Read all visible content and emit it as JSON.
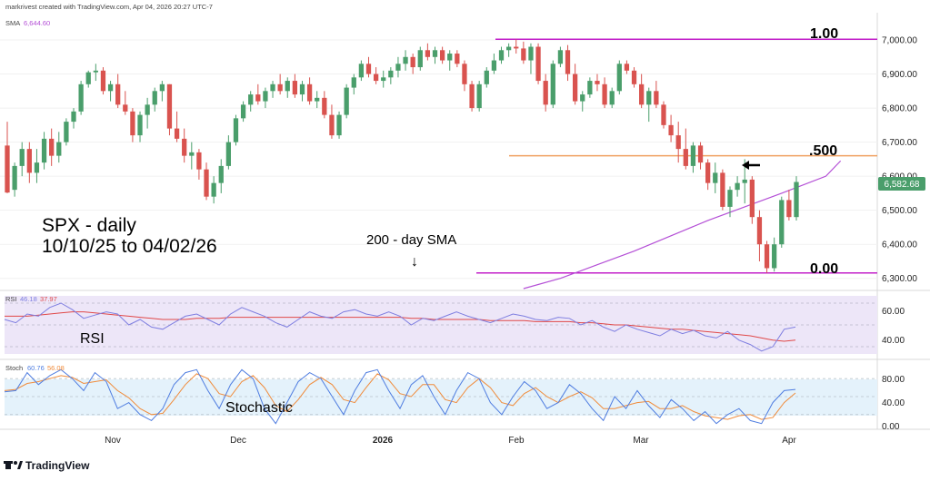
{
  "header": {
    "credit": "markrivest created with TradingView.com, Apr 04, 2026 20:27 UTC-7",
    "sma_label": "SMA",
    "sma_value": "6,644.60",
    "current_price": "6,582.68"
  },
  "annotations": {
    "title_line1": "SPX - daily",
    "title_line2": "10/10/25 to 04/02/26",
    "sma_note": "200 - day SMA",
    "sma_arrow": "↓",
    "fib_top": "1.00",
    "fib_mid": ".500",
    "fib_bottom": "0.00",
    "left_arrow": "🡐"
  },
  "rsi_panel": {
    "label": "RSI",
    "legend_name": "RSI",
    "legend_v1": "46.18",
    "legend_v2": "37.97",
    "ticks": [
      "60.00",
      "40.00"
    ]
  },
  "stoch_panel": {
    "label": "Stochastic",
    "legend_name": "Stoch",
    "legend_v1": "60.76",
    "legend_v2": "56.08",
    "ticks": [
      "80.00",
      "40.00",
      "0.00"
    ]
  },
  "footer": {
    "brand": "TradingView"
  },
  "colors": {
    "up": "#4a9e6b",
    "down": "#d9534f",
    "sma": "#b44fd6",
    "fib_purple": "#c21fc9",
    "fib_orange": "#f0a060",
    "rsi": "#7e7ee0",
    "rsi_ma": "#e04848",
    "stoch_k": "#4f7de0",
    "stoch_d": "#f08c3c",
    "band": "#ede6f8",
    "stoch_band": "#e4f2fb"
  },
  "chart_data": {
    "type": "candlestick",
    "title": "SPX - daily",
    "subtitle": "10/10/25 to 04/02/26",
    "x_tick_labels": [
      "Nov",
      "Dec",
      "2026",
      "Feb",
      "Mar",
      "Apr"
    ],
    "y_ticks": [
      "7,000.00",
      "6,900.00",
      "6,800.00",
      "6,700.00",
      "6,600.00",
      "6,500.00",
      "6,400.00",
      "6,300.00"
    ],
    "ylim": [
      6270,
      7080
    ],
    "fib_levels": [
      {
        "label": "1.00",
        "value": 7002
      },
      {
        "label": ".500",
        "value": 6660
      },
      {
        "label": "0.00",
        "value": 6316
      }
    ],
    "ohlc": [
      [
        6690,
        6760,
        6550,
        6552
      ],
      [
        6560,
        6640,
        6540,
        6630
      ],
      [
        6630,
        6700,
        6600,
        6680
      ],
      [
        6680,
        6700,
        6580,
        6610
      ],
      [
        6610,
        6680,
        6580,
        6640
      ],
      [
        6640,
        6730,
        6620,
        6710
      ],
      [
        6710,
        6740,
        6630,
        6660
      ],
      [
        6660,
        6730,
        6640,
        6700
      ],
      [
        6700,
        6770,
        6690,
        6760
      ],
      [
        6760,
        6800,
        6740,
        6790
      ],
      [
        6790,
        6880,
        6780,
        6870
      ],
      [
        6870,
        6910,
        6860,
        6905
      ],
      [
        6905,
        6930,
        6880,
        6910
      ],
      [
        6910,
        6920,
        6840,
        6850
      ],
      [
        6850,
        6880,
        6820,
        6870
      ],
      [
        6870,
        6900,
        6800,
        6810
      ],
      [
        6810,
        6850,
        6780,
        6790
      ],
      [
        6790,
        6800,
        6700,
        6720
      ],
      [
        6720,
        6790,
        6700,
        6780
      ],
      [
        6780,
        6830,
        6740,
        6810
      ],
      [
        6810,
        6860,
        6790,
        6850
      ],
      [
        6850,
        6880,
        6820,
        6870
      ],
      [
        6870,
        6870,
        6720,
        6740
      ],
      [
        6740,
        6790,
        6700,
        6710
      ],
      [
        6710,
        6740,
        6640,
        6660
      ],
      [
        6660,
        6700,
        6620,
        6670
      ],
      [
        6670,
        6680,
        6590,
        6620
      ],
      [
        6620,
        6640,
        6530,
        6540
      ],
      [
        6540,
        6600,
        6520,
        6580
      ],
      [
        6580,
        6650,
        6550,
        6630
      ],
      [
        6630,
        6720,
        6620,
        6700
      ],
      [
        6700,
        6780,
        6690,
        6770
      ],
      [
        6770,
        6820,
        6760,
        6810
      ],
      [
        6810,
        6850,
        6790,
        6840
      ],
      [
        6840,
        6870,
        6810,
        6820
      ],
      [
        6820,
        6860,
        6800,
        6850
      ],
      [
        6850,
        6880,
        6830,
        6870
      ],
      [
        6870,
        6900,
        6840,
        6850
      ],
      [
        6850,
        6890,
        6830,
        6880
      ],
      [
        6880,
        6900,
        6830,
        6840
      ],
      [
        6840,
        6880,
        6820,
        6870
      ],
      [
        6870,
        6890,
        6810,
        6820
      ],
      [
        6820,
        6850,
        6800,
        6830
      ],
      [
        6830,
        6850,
        6770,
        6780
      ],
      [
        6780,
        6810,
        6710,
        6720
      ],
      [
        6720,
        6790,
        6710,
        6780
      ],
      [
        6780,
        6870,
        6770,
        6860
      ],
      [
        6860,
        6900,
        6840,
        6890
      ],
      [
        6890,
        6940,
        6880,
        6930
      ],
      [
        6930,
        6950,
        6890,
        6900
      ],
      [
        6900,
        6920,
        6870,
        6880
      ],
      [
        6880,
        6910,
        6860,
        6890
      ],
      [
        6890,
        6920,
        6870,
        6910
      ],
      [
        6910,
        6950,
        6890,
        6930
      ],
      [
        6930,
        6970,
        6910,
        6950
      ],
      [
        6950,
        6960,
        6900,
        6920
      ],
      [
        6920,
        6980,
        6910,
        6970
      ],
      [
        6970,
        6990,
        6940,
        6950
      ],
      [
        6950,
        6980,
        6930,
        6970
      ],
      [
        6970,
        6980,
        6930,
        6940
      ],
      [
        6940,
        6970,
        6910,
        6960
      ],
      [
        6960,
        6970,
        6920,
        6930
      ],
      [
        6930,
        6940,
        6850,
        6870
      ],
      [
        6870,
        6880,
        6790,
        6800
      ],
      [
        6800,
        6880,
        6790,
        6870
      ],
      [
        6870,
        6920,
        6860,
        6910
      ],
      [
        6910,
        6960,
        6900,
        6940
      ],
      [
        6940,
        6980,
        6930,
        6970
      ],
      [
        6970,
        6990,
        6950,
        6980
      ],
      [
        6980,
        7002,
        6960,
        6975
      ],
      [
        6975,
        6995,
        6930,
        6940
      ],
      [
        6940,
        6990,
        6900,
        6980
      ],
      [
        6980,
        6990,
        6870,
        6880
      ],
      [
        6880,
        6900,
        6790,
        6810
      ],
      [
        6810,
        6940,
        6800,
        6930
      ],
      [
        6930,
        6980,
        6920,
        6970
      ],
      [
        6970,
        6985,
        6880,
        6900
      ],
      [
        6900,
        6930,
        6810,
        6820
      ],
      [
        6820,
        6850,
        6790,
        6840
      ],
      [
        6840,
        6890,
        6830,
        6880
      ],
      [
        6880,
        6900,
        6850,
        6870
      ],
      [
        6870,
        6890,
        6800,
        6810
      ],
      [
        6810,
        6860,
        6800,
        6850
      ],
      [
        6850,
        6940,
        6840,
        6930
      ],
      [
        6930,
        6940,
        6900,
        6910
      ],
      [
        6910,
        6920,
        6860,
        6870
      ],
      [
        6870,
        6900,
        6800,
        6810
      ],
      [
        6810,
        6860,
        6760,
        6850
      ],
      [
        6850,
        6880,
        6800,
        6810
      ],
      [
        6810,
        6820,
        6740,
        6750
      ],
      [
        6750,
        6780,
        6700,
        6720
      ],
      [
        6720,
        6760,
        6640,
        6680
      ],
      [
        6680,
        6740,
        6620,
        6630
      ],
      [
        6630,
        6700,
        6610,
        6690
      ],
      [
        6690,
        6700,
        6620,
        6640
      ],
      [
        6640,
        6650,
        6560,
        6580
      ],
      [
        6580,
        6640,
        6550,
        6610
      ],
      [
        6610,
        6620,
        6500,
        6510
      ],
      [
        6510,
        6570,
        6480,
        6560
      ],
      [
        6560,
        6600,
        6540,
        6580
      ],
      [
        6580,
        6650,
        6520,
        6590
      ],
      [
        6590,
        6600,
        6460,
        6480
      ],
      [
        6480,
        6500,
        6350,
        6400
      ],
      [
        6400,
        6410,
        6316,
        6330
      ],
      [
        6330,
        6420,
        6320,
        6400
      ],
      [
        6400,
        6540,
        6390,
        6530
      ],
      [
        6530,
        6560,
        6470,
        6480
      ],
      [
        6480,
        6600,
        6470,
        6583
      ]
    ],
    "sma200": [
      [
        70,
        6270
      ],
      [
        75,
        6300
      ],
      [
        80,
        6340
      ],
      [
        85,
        6380
      ],
      [
        90,
        6425
      ],
      [
        95,
        6470
      ],
      [
        100,
        6510
      ],
      [
        105,
        6550
      ],
      [
        111,
        6600
      ],
      [
        113,
        6645
      ]
    ],
    "rsi_range": [
      20,
      80
    ],
    "rsi": [
      55,
      52,
      60,
      58,
      66,
      70,
      64,
      56,
      59,
      62,
      60,
      50,
      55,
      48,
      46,
      52,
      58,
      60,
      55,
      50,
      60,
      66,
      62,
      58,
      52,
      48,
      55,
      62,
      58,
      56,
      62,
      64,
      60,
      58,
      62,
      58,
      50,
      56,
      54,
      58,
      62,
      58,
      55,
      52,
      56,
      60,
      58,
      55,
      54,
      57,
      56,
      50,
      54,
      48,
      44,
      50,
      46,
      43,
      40,
      46,
      42,
      45,
      40,
      38,
      44,
      36,
      32,
      26,
      30,
      46,
      48
    ],
    "rsi_ma": [
      58,
      58,
      58,
      59,
      60,
      61,
      62,
      62,
      61,
      60,
      59,
      58,
      57,
      56,
      55,
      55,
      55,
      56,
      56,
      56,
      57,
      57,
      57,
      57,
      57,
      57,
      57,
      57,
      57,
      57,
      57,
      57,
      57,
      57,
      57,
      57,
      56,
      56,
      55,
      55,
      55,
      55,
      55,
      54,
      54,
      54,
      54,
      53,
      53,
      53,
      53,
      52,
      52,
      51,
      50,
      50,
      49,
      48,
      47,
      46,
      46,
      45,
      44,
      43,
      42,
      41,
      40,
      38,
      36,
      35,
      36
    ],
    "stoch_range": [
      0,
      100
    ],
    "stoch_k": [
      58,
      60,
      90,
      70,
      85,
      95,
      80,
      60,
      90,
      75,
      30,
      40,
      20,
      10,
      30,
      70,
      90,
      95,
      60,
      30,
      70,
      95,
      80,
      30,
      5,
      40,
      75,
      90,
      80,
      50,
      20,
      60,
      90,
      95,
      60,
      30,
      70,
      85,
      50,
      20,
      60,
      90,
      80,
      40,
      20,
      50,
      75,
      60,
      30,
      40,
      70,
      55,
      30,
      10,
      50,
      30,
      60,
      35,
      15,
      45,
      30,
      10,
      25,
      5,
      20,
      30,
      10,
      5,
      40,
      60,
      62
    ],
    "stoch_d": [
      60,
      62,
      72,
      75,
      80,
      85,
      82,
      72,
      75,
      78,
      60,
      48,
      30,
      20,
      22,
      45,
      70,
      88,
      80,
      55,
      50,
      75,
      85,
      65,
      35,
      25,
      45,
      70,
      82,
      70,
      45,
      40,
      65,
      88,
      78,
      55,
      50,
      70,
      70,
      45,
      40,
      65,
      80,
      65,
      40,
      35,
      55,
      65,
      50,
      40,
      50,
      58,
      48,
      30,
      30,
      35,
      40,
      42,
      30,
      30,
      35,
      25,
      18,
      15,
      12,
      18,
      20,
      12,
      15,
      40,
      56
    ]
  }
}
